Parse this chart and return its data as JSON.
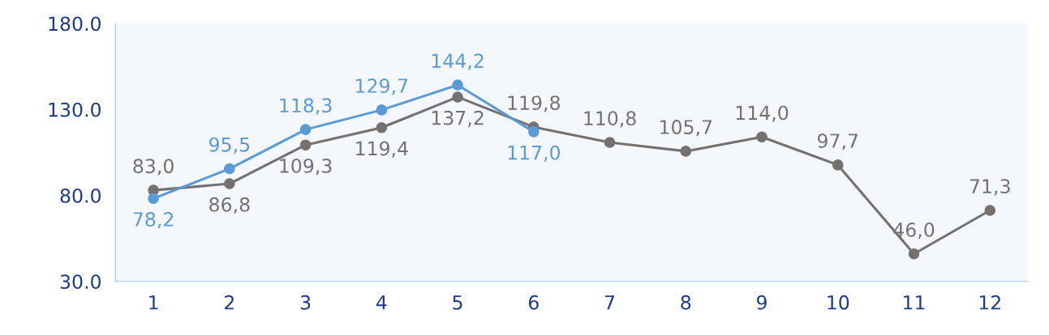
{
  "chart_data": {
    "type": "line",
    "categories": [
      "1",
      "2",
      "3",
      "4",
      "5",
      "6",
      "7",
      "8",
      "9",
      "10",
      "11",
      "12"
    ],
    "series": [
      {
        "color": "#767171",
        "values": [
          83.0,
          86.8,
          109.3,
          119.4,
          137.2,
          119.8,
          110.8,
          105.7,
          114.0,
          97.7,
          46.0,
          71.3
        ],
        "value_labels": [
          "83,0",
          "86,8",
          "109,3",
          "119,4",
          "137,2",
          "119,8",
          "110,8",
          "105,7",
          "114,0",
          "97,7",
          "46,0",
          "71,3"
        ]
      },
      {
        "color": "#5b9bd5",
        "values": [
          78.2,
          95.5,
          118.3,
          129.7,
          144.2,
          117.0,
          null,
          null,
          null,
          null,
          null,
          null
        ],
        "value_labels": [
          "78,2",
          "95,5",
          "118,3",
          "129,7",
          "144,2",
          "117,0",
          null,
          null,
          null,
          null,
          null,
          null
        ]
      }
    ],
    "ylim": [
      30,
      180
    ],
    "yticks": [
      {
        "value": 30,
        "label": "30.0"
      },
      {
        "value": 80,
        "label": "80.0"
      },
      {
        "value": 130,
        "label": "130.0"
      },
      {
        "value": 180,
        "label": "180.0"
      }
    ],
    "marker": "circle",
    "line_style": "solid",
    "grid": false,
    "legend": false
  }
}
